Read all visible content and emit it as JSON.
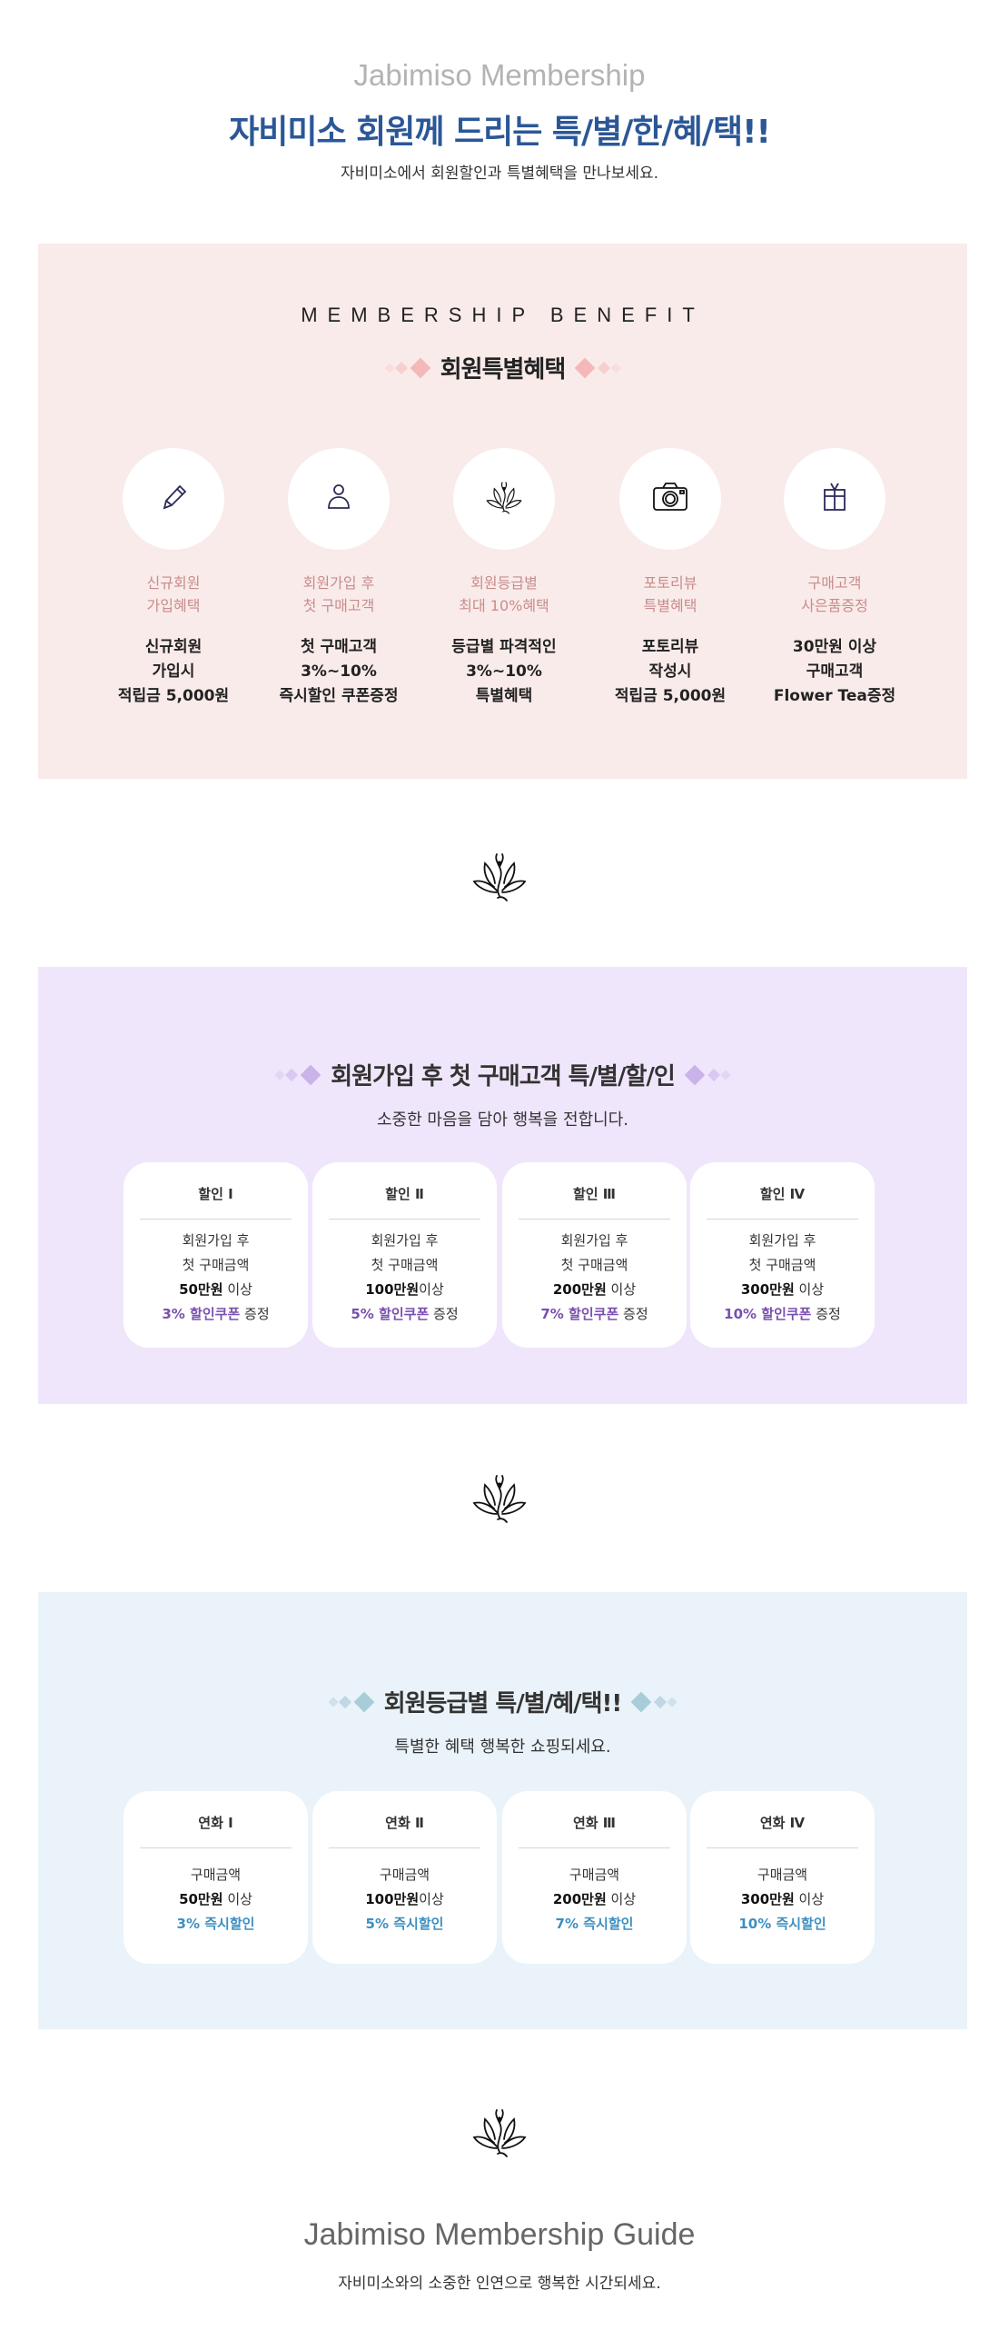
{
  "header": {
    "brand": "Jabimiso Membership",
    "headline": "자비미소 회원께 드리는 특/별/한/혜/택!!",
    "subtitle": "자비미소에서 회원할인과 특별혜택을 만나보세요."
  },
  "benefit": {
    "eyebrow": "MEMBERSHIP BENEFIT",
    "title": "회원특별혜택",
    "accent": "#f4b8b8",
    "items": [
      {
        "icon": "pencil-icon",
        "label1": "신규회원",
        "label2": "가입혜택",
        "l1": "신규회원",
        "l2": "가입시",
        "l3": "적립금 5,000원"
      },
      {
        "icon": "user-icon",
        "label1": "회원가입 후",
        "label2": "첫 구매고객",
        "l1": "첫 구매고객",
        "l2": "3%~10%",
        "l3": "즉시할인 쿠폰증정"
      },
      {
        "icon": "lotus-icon",
        "label1": "회원등급별",
        "label2": "최대 10%혜택",
        "l1": "등급별 파격적인",
        "l2": "3%~10%",
        "l3": "특별혜택"
      },
      {
        "icon": "camera-icon",
        "label1": "포토리뷰",
        "label2": "특별혜택",
        "l1": "포토리뷰",
        "l2": "작성시",
        "l3": "적립금 5,000원"
      },
      {
        "icon": "gift-icon",
        "label1": "구매고객",
        "label2": "사은품증정",
        "l1": "30만원 이상",
        "l2": "구매고객",
        "l3": "Flower Tea증정"
      }
    ]
  },
  "discount": {
    "title": "회원가입 후 첫 구매고객 특/별/할/인",
    "subtitle": "소중한 마음을 담아 행복을 전합니다.",
    "accent": "#7a4fb0",
    "cards": [
      {
        "title": "할인 Ⅰ",
        "l1": "회원가입 후",
        "l2": "첫 구매금액",
        "amount": "50만원",
        "amount_suffix": " 이상",
        "pct": "3% 할인쿠폰",
        "suffix": " 증정"
      },
      {
        "title": "할인 Ⅱ",
        "l1": "회원가입 후",
        "l2": "첫 구매금액",
        "amount": "100만원",
        "amount_suffix": "이상",
        "pct": "5% 할인쿠폰",
        "suffix": " 증정"
      },
      {
        "title": "할인 Ⅲ",
        "l1": "회원가입 후",
        "l2": "첫 구매금액",
        "amount": "200만원",
        "amount_suffix": " 이상",
        "pct": "7% 할인쿠폰",
        "suffix": " 증정"
      },
      {
        "title": "할인 Ⅳ",
        "l1": "회원가입 후",
        "l2": "첫 구매금액",
        "amount": "300만원",
        "amount_suffix": " 이상",
        "pct": "10% 할인쿠폰",
        "suffix": " 증정"
      }
    ]
  },
  "grade": {
    "title": "회원등급별 특/별/혜/택!!",
    "subtitle": "특별한 혜택 행복한 쇼핑되세요.",
    "accent": "#3d8fc1",
    "cards": [
      {
        "title": "연화 Ⅰ",
        "l1": "구매금액",
        "amount": "50만원",
        "amount_suffix": " 이상",
        "pct": "3% 즉시할인"
      },
      {
        "title": "연화 Ⅱ",
        "l1": "구매금액",
        "amount": "100만원",
        "amount_suffix": "이상",
        "pct": "5% 즉시할인"
      },
      {
        "title": "연화 Ⅲ",
        "l1": "구매금액",
        "amount": "200만원",
        "amount_suffix": " 이상",
        "pct": "7% 즉시할인"
      },
      {
        "title": "연화 Ⅳ",
        "l1": "구매금액",
        "amount": "300만원",
        "amount_suffix": " 이상",
        "pct": "10% 즉시할인"
      }
    ]
  },
  "guide": {
    "title": "Jabimiso Membership Guide",
    "subtitle": "자비미소와의 소중한 인연으로 행복한 시간되세요."
  }
}
